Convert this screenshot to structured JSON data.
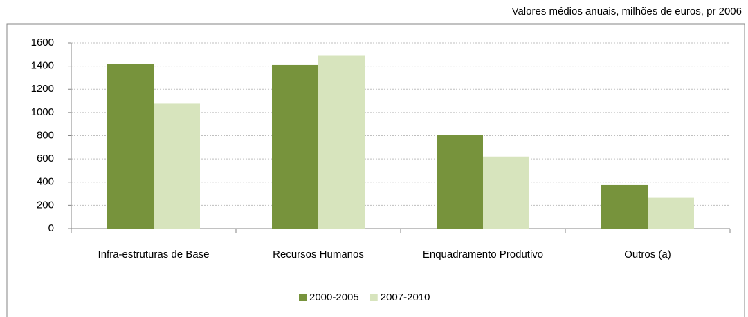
{
  "chart_data": {
    "type": "bar",
    "subtitle": "Valores médios anuais, milhões de euros, pr 2006",
    "categories": [
      "Infra-estruturas de Base",
      "Recursos Humanos",
      "Enquadramento Produtivo",
      "Outros (a)"
    ],
    "series": [
      {
        "name": "2000-2005",
        "color": "#77933c",
        "values": [
          1420,
          1410,
          805,
          375
        ]
      },
      {
        "name": "2007-2010",
        "color": "#d7e4bd",
        "values": [
          1080,
          1490,
          620,
          270
        ]
      }
    ],
    "ylim": [
      0,
      1600
    ],
    "yticks": [
      0,
      200,
      400,
      600,
      800,
      1000,
      1200,
      1400,
      1600
    ],
    "grid": true
  }
}
